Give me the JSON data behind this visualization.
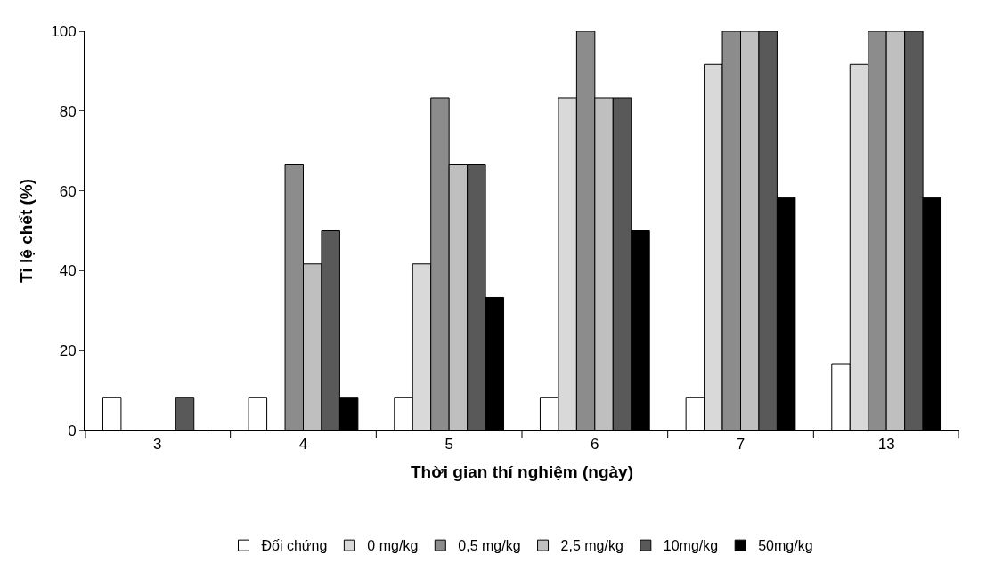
{
  "chart_data": {
    "type": "bar",
    "xlabel": "Thời gian thí nghiệm (ngày)",
    "ylabel": "Tỉ lệ chết (%)",
    "categories": [
      "3",
      "4",
      "5",
      "6",
      "7",
      "13"
    ],
    "series": [
      {
        "name": "Đối chứng",
        "color": "#ffffff",
        "values": [
          8.3,
          8.3,
          8.3,
          8.3,
          8.3,
          16.7
        ]
      },
      {
        "name": "0 mg/kg",
        "color": "#d9d9d9",
        "values": [
          0,
          0,
          41.7,
          83.3,
          91.7,
          91.7
        ]
      },
      {
        "name": "0,5 mg/kg",
        "color": "#8c8c8c",
        "values": [
          0,
          66.7,
          83.3,
          100,
          100,
          100
        ]
      },
      {
        "name": "2,5 mg/kg",
        "color": "#bfbfbf",
        "values": [
          0,
          41.7,
          66.7,
          83.3,
          100,
          100
        ]
      },
      {
        "name": "10mg/kg",
        "color": "#595959",
        "values": [
          8.3,
          50,
          66.7,
          83.3,
          100,
          100
        ]
      },
      {
        "name": "50mg/kg",
        "color": "#000000",
        "values": [
          0,
          8.3,
          33.3,
          50,
          58.3,
          58.3
        ]
      }
    ],
    "ylim": [
      0,
      100
    ],
    "yticks": [
      0,
      20,
      40,
      60,
      80,
      100
    ],
    "grid": false,
    "legend": "bottom"
  }
}
